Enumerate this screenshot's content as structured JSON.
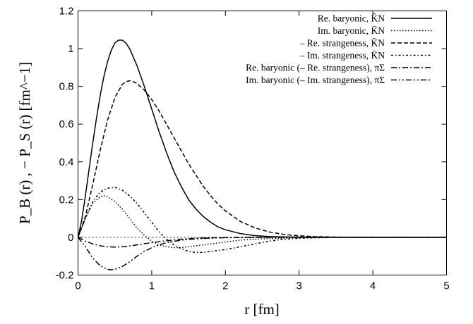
{
  "chart_data": {
    "type": "line",
    "title": "",
    "xlabel": "r [fm]",
    "ylabel": "P_B (r) , − P_S (r) [fm^−1]",
    "xlim": [
      0,
      5
    ],
    "ylim": [
      -0.2,
      1.2
    ],
    "x_ticks": [
      "0",
      "1",
      "2",
      "3",
      "4",
      "5"
    ],
    "y_ticks": [
      "-0.2",
      "0",
      "0.2",
      "0.4",
      "0.6",
      "0.8",
      "1",
      "1.2"
    ],
    "legend_position": "top-right",
    "grid": false,
    "zero_line": true,
    "series": [
      {
        "name": "Re. baryonic, K̄N",
        "dash": "solid",
        "points": [
          [
            0,
            0
          ],
          [
            0.05,
            0.09
          ],
          [
            0.1,
            0.22
          ],
          [
            0.15,
            0.36
          ],
          [
            0.2,
            0.5
          ],
          [
            0.25,
            0.63
          ],
          [
            0.3,
            0.75
          ],
          [
            0.35,
            0.85
          ],
          [
            0.4,
            0.93
          ],
          [
            0.45,
            0.99
          ],
          [
            0.5,
            1.03
          ],
          [
            0.55,
            1.045
          ],
          [
            0.6,
            1.045
          ],
          [
            0.65,
            1.03
          ],
          [
            0.7,
            1.0
          ],
          [
            0.8,
            0.91
          ],
          [
            0.9,
            0.8
          ],
          [
            1.0,
            0.68
          ],
          [
            1.1,
            0.56
          ],
          [
            1.2,
            0.45
          ],
          [
            1.3,
            0.35
          ],
          [
            1.4,
            0.27
          ],
          [
            1.5,
            0.2
          ],
          [
            1.6,
            0.15
          ],
          [
            1.7,
            0.11
          ],
          [
            1.8,
            0.08
          ],
          [
            1.9,
            0.055
          ],
          [
            2.0,
            0.04
          ],
          [
            2.2,
            0.02
          ],
          [
            2.4,
            0.009
          ],
          [
            2.6,
            0.004
          ],
          [
            2.8,
            0.002
          ],
          [
            3.0,
            0.001
          ],
          [
            3.5,
            0
          ],
          [
            4.0,
            0
          ],
          [
            5.0,
            0
          ]
        ]
      },
      {
        "name": "Im. baryonic, K̄N",
        "dash": "dotted",
        "points": [
          [
            0,
            0
          ],
          [
            0.1,
            0.1
          ],
          [
            0.2,
            0.18
          ],
          [
            0.3,
            0.215
          ],
          [
            0.35,
            0.22
          ],
          [
            0.4,
            0.215
          ],
          [
            0.5,
            0.19
          ],
          [
            0.6,
            0.15
          ],
          [
            0.7,
            0.1
          ],
          [
            0.8,
            0.05
          ],
          [
            0.9,
            0.01
          ],
          [
            1.0,
            -0.02
          ],
          [
            1.1,
            -0.04
          ],
          [
            1.2,
            -0.05
          ],
          [
            1.3,
            -0.055
          ],
          [
            1.4,
            -0.055
          ],
          [
            1.5,
            -0.05
          ],
          [
            1.6,
            -0.045
          ],
          [
            1.8,
            -0.035
          ],
          [
            2.0,
            -0.025
          ],
          [
            2.2,
            -0.015
          ],
          [
            2.5,
            -0.008
          ],
          [
            3.0,
            -0.002
          ],
          [
            3.5,
            0
          ],
          [
            5.0,
            0
          ]
        ]
      },
      {
        "name": "– Re. strangeness, K̄N",
        "dash": "dashed",
        "points": [
          [
            0,
            0
          ],
          [
            0.1,
            0.11
          ],
          [
            0.2,
            0.28
          ],
          [
            0.3,
            0.46
          ],
          [
            0.4,
            0.62
          ],
          [
            0.5,
            0.74
          ],
          [
            0.6,
            0.81
          ],
          [
            0.65,
            0.825
          ],
          [
            0.7,
            0.83
          ],
          [
            0.75,
            0.825
          ],
          [
            0.8,
            0.815
          ],
          [
            0.9,
            0.78
          ],
          [
            1.0,
            0.73
          ],
          [
            1.1,
            0.67
          ],
          [
            1.2,
            0.6
          ],
          [
            1.3,
            0.53
          ],
          [
            1.4,
            0.46
          ],
          [
            1.5,
            0.39
          ],
          [
            1.6,
            0.33
          ],
          [
            1.7,
            0.27
          ],
          [
            1.8,
            0.22
          ],
          [
            1.9,
            0.175
          ],
          [
            2.0,
            0.14
          ],
          [
            2.2,
            0.085
          ],
          [
            2.4,
            0.05
          ],
          [
            2.6,
            0.028
          ],
          [
            2.8,
            0.015
          ],
          [
            3.0,
            0.008
          ],
          [
            3.2,
            0.004
          ],
          [
            3.5,
            0.001
          ],
          [
            4.0,
            0
          ],
          [
            5.0,
            0
          ]
        ]
      },
      {
        "name": "– Im. strangeness, K̄N",
        "dash": "dashdotted-fine",
        "points": [
          [
            0,
            0
          ],
          [
            0.1,
            0.1
          ],
          [
            0.2,
            0.19
          ],
          [
            0.3,
            0.24
          ],
          [
            0.4,
            0.26
          ],
          [
            0.5,
            0.265
          ],
          [
            0.6,
            0.25
          ],
          [
            0.7,
            0.22
          ],
          [
            0.8,
            0.18
          ],
          [
            0.9,
            0.13
          ],
          [
            1.0,
            0.08
          ],
          [
            1.1,
            0.03
          ],
          [
            1.2,
            -0.01
          ],
          [
            1.3,
            -0.04
          ],
          [
            1.4,
            -0.06
          ],
          [
            1.5,
            -0.075
          ],
          [
            1.6,
            -0.08
          ],
          [
            1.7,
            -0.08
          ],
          [
            1.8,
            -0.075
          ],
          [
            2.0,
            -0.065
          ],
          [
            2.2,
            -0.05
          ],
          [
            2.4,
            -0.035
          ],
          [
            2.6,
            -0.02
          ],
          [
            2.8,
            -0.01
          ],
          [
            3.0,
            -0.005
          ],
          [
            3.5,
            0
          ],
          [
            5.0,
            0
          ]
        ]
      },
      {
        "name": "Re. baryonic (– Re. strangeness), πΣ",
        "dash": "dashdot",
        "points": [
          [
            0,
            0
          ],
          [
            0.1,
            -0.02
          ],
          [
            0.2,
            -0.035
          ],
          [
            0.3,
            -0.045
          ],
          [
            0.4,
            -0.05
          ],
          [
            0.5,
            -0.052
          ],
          [
            0.6,
            -0.05
          ],
          [
            0.7,
            -0.046
          ],
          [
            0.8,
            -0.04
          ],
          [
            0.9,
            -0.034
          ],
          [
            1.0,
            -0.028
          ],
          [
            1.2,
            -0.018
          ],
          [
            1.4,
            -0.01
          ],
          [
            1.6,
            -0.005
          ],
          [
            1.8,
            -0.002
          ],
          [
            2.0,
            -0.001
          ],
          [
            2.5,
            0
          ],
          [
            5.0,
            0
          ]
        ]
      },
      {
        "name": "Im. baryonic (– Im. strangeness), πΣ",
        "dash": "dashdotdot",
        "points": [
          [
            0,
            0
          ],
          [
            0.1,
            -0.05
          ],
          [
            0.2,
            -0.11
          ],
          [
            0.3,
            -0.15
          ],
          [
            0.4,
            -0.17
          ],
          [
            0.45,
            -0.172
          ],
          [
            0.5,
            -0.17
          ],
          [
            0.6,
            -0.155
          ],
          [
            0.7,
            -0.13
          ],
          [
            0.8,
            -0.1
          ],
          [
            0.9,
            -0.075
          ],
          [
            1.0,
            -0.055
          ],
          [
            1.1,
            -0.04
          ],
          [
            1.2,
            -0.028
          ],
          [
            1.4,
            -0.015
          ],
          [
            1.6,
            -0.008
          ],
          [
            1.8,
            -0.004
          ],
          [
            2.0,
            -0.002
          ],
          [
            2.5,
            0
          ],
          [
            5.0,
            0
          ]
        ]
      }
    ]
  }
}
